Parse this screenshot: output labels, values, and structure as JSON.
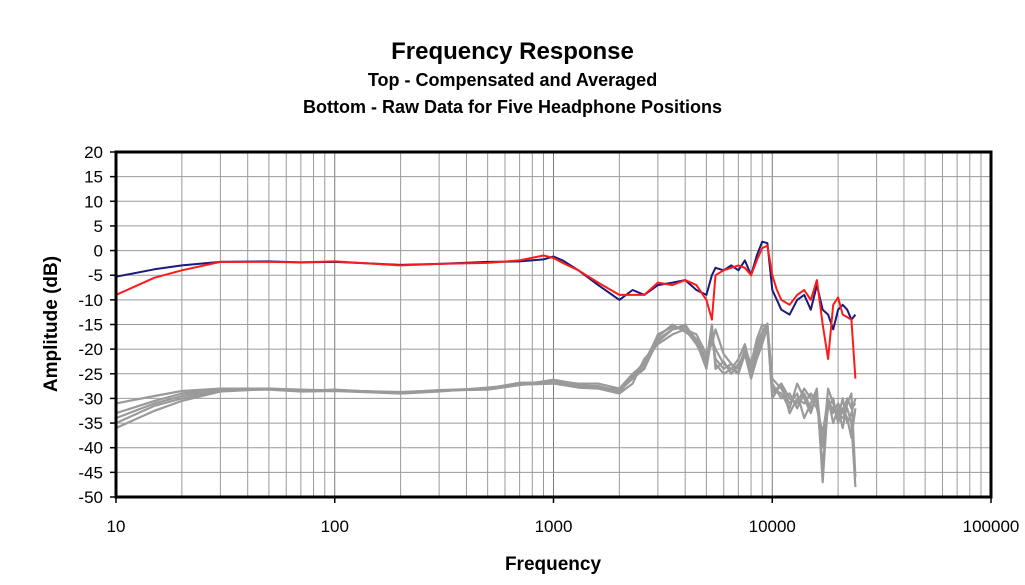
{
  "chart_data": {
    "type": "line",
    "title": "Frequency Response",
    "subtitle_lines": [
      "Top -  Compensated and Averaged",
      "Bottom - Raw Data for Five Headphone Positions"
    ],
    "xlabel": "Frequency",
    "ylabel": "Amplitude (dB)",
    "x_scale": "log",
    "xlim": [
      10,
      100000
    ],
    "ylim": [
      -50,
      20
    ],
    "x_ticks": [
      "10",
      "100",
      "1000",
      "10000",
      "100000"
    ],
    "y_ticks": [
      "20",
      "15",
      "10",
      "5",
      "0",
      "-5",
      "-10",
      "-15",
      "-20",
      "-25",
      "-30",
      "-35",
      "-40",
      "-45",
      "-50"
    ],
    "grid": true,
    "legend": "none",
    "colors": {
      "blue": "#1a1a7a",
      "red": "#ff1a1a",
      "gray": "#9a9a9a"
    },
    "series": [
      {
        "color": "blue",
        "x": [
          10,
          15,
          20,
          30,
          50,
          70,
          100,
          200,
          300,
          500,
          700,
          900,
          1000,
          1100,
          1300,
          1600,
          2000,
          2300,
          2600,
          3000,
          3500,
          4000,
          4500,
          5000,
          5300,
          5500,
          6000,
          6500,
          7000,
          7500,
          8000,
          8500,
          9000,
          9500,
          10000,
          10500,
          11000,
          12000,
          13000,
          14000,
          15000,
          16000,
          17000,
          18000,
          19000,
          20000,
          21000,
          22000,
          23000,
          24000
        ],
        "y": [
          -5.3,
          -3.8,
          -3,
          -2.3,
          -2.2,
          -2.4,
          -2.3,
          -2.9,
          -2.7,
          -2.3,
          -2.2,
          -1.8,
          -1.2,
          -2,
          -4,
          -7,
          -10,
          -8,
          -9,
          -7,
          -6.5,
          -6,
          -8,
          -9,
          -5,
          -3.5,
          -4,
          -3,
          -4,
          -2,
          -5,
          -1,
          1.8,
          1.5,
          -8,
          -10,
          -12,
          -13,
          -10,
          -9,
          -12,
          -7,
          -12,
          -13,
          -16,
          -12,
          -11,
          -12,
          -14,
          -13
        ]
      },
      {
        "color": "red",
        "x": [
          10,
          15,
          20,
          30,
          50,
          70,
          100,
          200,
          300,
          500,
          700,
          900,
          1000,
          1100,
          1300,
          1600,
          2000,
          2300,
          2600,
          3000,
          3500,
          4000,
          4500,
          5000,
          5300,
          5500,
          6000,
          6500,
          7000,
          7500,
          8000,
          8500,
          9000,
          9500,
          10000,
          10500,
          11000,
          12000,
          13000,
          14000,
          15000,
          16000,
          17000,
          18000,
          19000,
          20000,
          21000,
          22000,
          23000,
          24000
        ],
        "y": [
          -9,
          -5.5,
          -4,
          -2.3,
          -2.3,
          -2.4,
          -2.2,
          -3,
          -2.7,
          -2.5,
          -2,
          -1,
          -1.5,
          -2.5,
          -4,
          -6.5,
          -9,
          -9,
          -9,
          -6.5,
          -7,
          -6,
          -7,
          -10,
          -14,
          -5,
          -4,
          -3.5,
          -3,
          -3.5,
          -5,
          -2,
          0.5,
          1,
          -5,
          -8,
          -10,
          -11,
          -9,
          -8,
          -10,
          -6,
          -15,
          -22,
          -11,
          -9.5,
          -13,
          -13.5,
          -14,
          -26
        ]
      },
      {
        "color": "gray",
        "x": [
          10,
          15,
          20,
          30,
          50,
          70,
          100,
          200,
          300,
          500,
          700,
          1000,
          1300,
          1600,
          2000,
          2300,
          2600,
          3000,
          3500,
          4000,
          4500,
          5000,
          5300,
          5500,
          6000,
          6500,
          7000,
          7500,
          8000,
          8500,
          9000,
          9500,
          10000,
          11000,
          12000,
          13000,
          14000,
          15000,
          16000,
          17000,
          18000,
          19000,
          20000,
          21000,
          22000,
          23000,
          24000
        ],
        "y": [
          -31,
          -29.5,
          -28.5,
          -28,
          -28,
          -28.3,
          -28.3,
          -28.8,
          -28.3,
          -28,
          -27,
          -26.5,
          -27,
          -27,
          -28,
          -25,
          -23,
          -17,
          -15.5,
          -16,
          -19,
          -23,
          -17,
          -23,
          -25,
          -24,
          -25,
          -20,
          -23,
          -18,
          -15,
          -16,
          -29,
          -27,
          -30,
          -31,
          -28,
          -30,
          -32,
          -37,
          -30,
          -33,
          -31,
          -33,
          -30,
          -32,
          -31
        ]
      },
      {
        "color": "gray",
        "x": [
          10,
          15,
          20,
          30,
          50,
          70,
          100,
          200,
          300,
          500,
          700,
          1000,
          1300,
          1600,
          2000,
          2300,
          2600,
          3000,
          3500,
          4000,
          4500,
          5000,
          5300,
          5500,
          6000,
          6500,
          7000,
          7500,
          8000,
          8500,
          9000,
          9500,
          10000,
          11000,
          12000,
          13000,
          14000,
          15000,
          16000,
          17000,
          18000,
          19000,
          20000,
          21000,
          22000,
          23000,
          24000
        ],
        "y": [
          -33,
          -30.5,
          -29,
          -28,
          -28.1,
          -28.4,
          -28.3,
          -28.9,
          -28.5,
          -28,
          -26.8,
          -26.8,
          -27.4,
          -27.5,
          -28.5,
          -26,
          -24,
          -18,
          -16,
          -15.5,
          -18,
          -22,
          -18,
          -20,
          -23,
          -24,
          -22,
          -19,
          -24,
          -20,
          -17,
          -15,
          -28,
          -29,
          -32,
          -27,
          -30,
          -33,
          -29,
          -40,
          -28,
          -31,
          -34,
          -30,
          -35,
          -33,
          -30
        ]
      },
      {
        "color": "gray",
        "x": [
          10,
          15,
          20,
          30,
          50,
          70,
          100,
          200,
          300,
          500,
          700,
          1000,
          1300,
          1600,
          2000,
          2300,
          2600,
          3000,
          3500,
          4000,
          4500,
          5000,
          5300,
          5500,
          6000,
          6500,
          7000,
          7500,
          8000,
          8500,
          9000,
          9500,
          10000,
          11000,
          12000,
          13000,
          14000,
          15000,
          16000,
          17000,
          18000,
          19000,
          20000,
          21000,
          22000,
          23000,
          24000
        ],
        "y": [
          -34,
          -31,
          -29.5,
          -28.2,
          -28.2,
          -28.6,
          -28.5,
          -29,
          -28.6,
          -27.8,
          -27.2,
          -27,
          -27.8,
          -28,
          -29,
          -27,
          -22,
          -19,
          -17,
          -16,
          -17,
          -21,
          -19,
          -16,
          -21,
          -23,
          -25,
          -21,
          -26,
          -22,
          -19,
          -15.5,
          -26,
          -28,
          -31,
          -29,
          -34,
          -31,
          -28,
          -47,
          -30,
          -35,
          -32,
          -36,
          -31,
          -29,
          -46
        ]
      },
      {
        "color": "gray",
        "x": [
          10,
          15,
          20,
          30,
          50,
          70,
          100,
          200,
          300,
          500,
          700,
          1000,
          1300,
          1600,
          2000,
          2300,
          2600,
          3000,
          3500,
          4000,
          4500,
          5000,
          5300,
          5500,
          6000,
          6500,
          7000,
          7500,
          8000,
          8500,
          9000,
          9500,
          10000,
          11000,
          12000,
          13000,
          14000,
          15000,
          16000,
          17000,
          18000,
          19000,
          20000,
          21000,
          22000,
          23000,
          24000
        ],
        "y": [
          -35,
          -31.5,
          -30,
          -28.5,
          -28,
          -28.2,
          -28.4,
          -28.7,
          -28.4,
          -28.2,
          -27.3,
          -26.2,
          -27.1,
          -27.8,
          -28.2,
          -26,
          -23.5,
          -18.5,
          -16,
          -15,
          -18.5,
          -24,
          -17,
          -22,
          -24,
          -23,
          -24,
          -20,
          -25,
          -21,
          -18,
          -16,
          -30,
          -27,
          -33,
          -30,
          -31,
          -29,
          -31,
          -39,
          -32,
          -30,
          -35,
          -32,
          -34,
          -38,
          -32
        ]
      },
      {
        "color": "gray",
        "x": [
          10,
          15,
          20,
          30,
          50,
          70,
          100,
          200,
          300,
          500,
          700,
          1000,
          1300,
          1600,
          2000,
          2300,
          2600,
          3000,
          3500,
          4000,
          4500,
          5000,
          5300,
          5500,
          6000,
          6500,
          7000,
          7500,
          8000,
          8500,
          9000,
          9500,
          10000,
          11000,
          12000,
          13000,
          14000,
          15000,
          16000,
          17000,
          18000,
          19000,
          20000,
          21000,
          22000,
          23000,
          24000
        ],
        "y": [
          -36,
          -32.5,
          -30.5,
          -28.6,
          -28.1,
          -28.5,
          -28.2,
          -29,
          -28.5,
          -27.9,
          -27,
          -26.6,
          -27.5,
          -27.6,
          -28.8,
          -25.5,
          -22.5,
          -17.5,
          -15,
          -16.5,
          -18,
          -22.5,
          -15,
          -24,
          -22.5,
          -25,
          -23,
          -21,
          -23.5,
          -19,
          -16.5,
          -14.8,
          -27,
          -30,
          -29,
          -32,
          -29,
          -32,
          -30,
          -44,
          -31,
          -32,
          -33,
          -34,
          -32,
          -35,
          -48
        ]
      }
    ]
  }
}
